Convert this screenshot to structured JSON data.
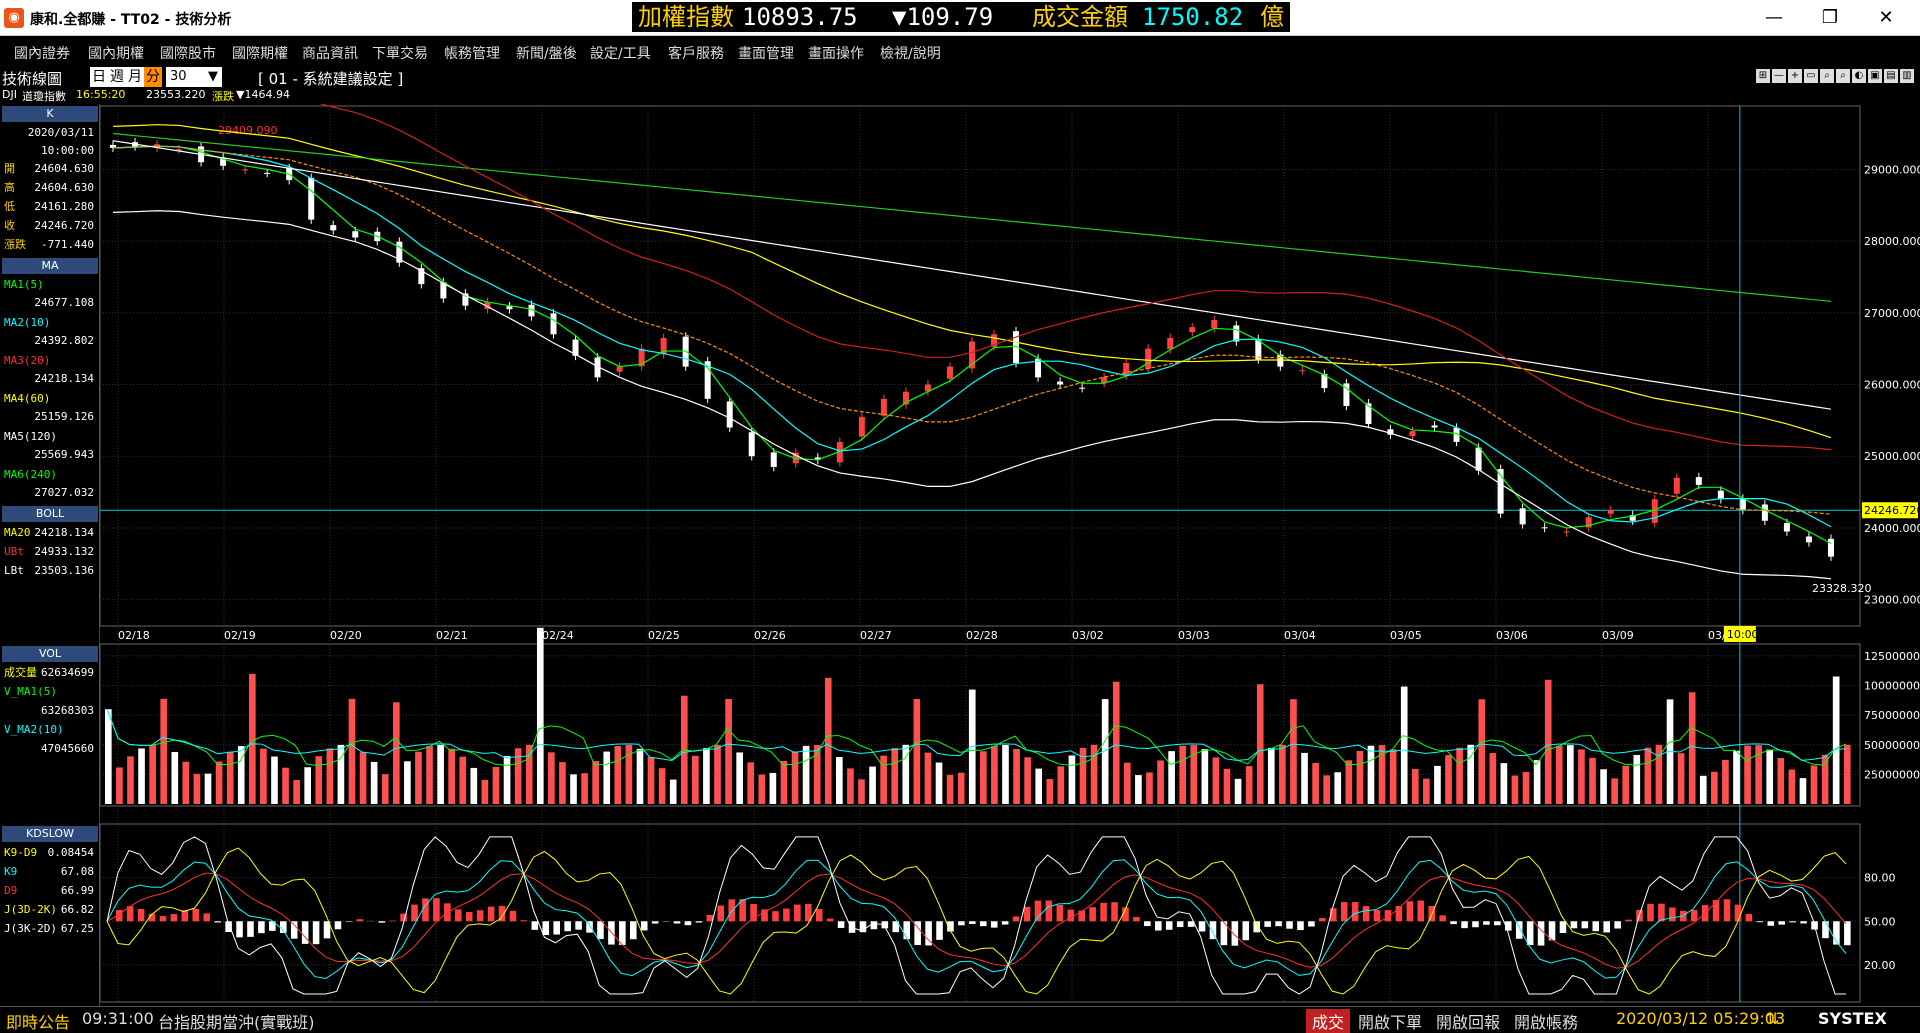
{
  "window": {
    "title": "康和.全都賺 - TT02 - 技術分析",
    "ticker": {
      "label": "加權指數",
      "index": "10893.75",
      "change": "▼109.79",
      "amount_label": "成交金額",
      "amount": "1750.82",
      "unit": "億"
    }
  },
  "menu": [
    "國內證券",
    "國內期權",
    "國際股市",
    "國際期權",
    "商品資訊",
    "下單交易",
    "帳務管理",
    "新聞/盤後",
    "設定/工具",
    "客戶服務",
    "畫面管理",
    "畫面操作",
    "檢視/說明"
  ],
  "toolbar": {
    "title": "技術線圖",
    "periods": [
      "日",
      "週",
      "月",
      "分"
    ],
    "active_period": "分",
    "interval": "30",
    "setting": "[ 01 - 系統建議設定 ]"
  },
  "infoline": {
    "symbol": "DJI",
    "name": "道瓊指數",
    "time": "16:55:20",
    "price": "23553.220",
    "change_label": "漲跌",
    "change": "▼1464.94"
  },
  "panel_k": {
    "head": "K",
    "date": "2020/03/11",
    "time": "10:00:00",
    "rows": [
      {
        "k": "開",
        "v": "24604.630"
      },
      {
        "k": "高",
        "v": "24604.630"
      },
      {
        "k": "低",
        "v": "24161.280"
      },
      {
        "k": "收",
        "v": "24246.720"
      },
      {
        "k": "漲跌",
        "v": "-771.440"
      }
    ]
  },
  "panel_ma": {
    "head": "MA",
    "rows": [
      {
        "k": "MA1(5)",
        "v": "24677.108",
        "color": "#00ff00"
      },
      {
        "k": "MA2(10)",
        "v": "24392.802",
        "color": "#00ffff"
      },
      {
        "k": "MA3(20)",
        "v": "24218.134",
        "color": "#ff3030"
      },
      {
        "k": "MA4(60)",
        "v": "25159.126",
        "color": "#ffff00"
      },
      {
        "k": "MA5(120)",
        "v": "25569.943",
        "color": "#ffffff"
      },
      {
        "k": "MA6(240)",
        "v": "27027.032",
        "color": "#00ff00"
      }
    ]
  },
  "panel_boll": {
    "head": "BOLL",
    "rows": [
      {
        "k": "MA20",
        "v": "24218.134",
        "color": "#ffff00"
      },
      {
        "k": "UBt",
        "v": "24933.132",
        "color": "#ff3030"
      },
      {
        "k": "LBt",
        "v": "23503.136",
        "color": "#ffffff"
      }
    ]
  },
  "panel_vol": {
    "head": "VOL",
    "rows": [
      {
        "k": "成交量",
        "v": "62634699",
        "color": "#ffff00"
      },
      {
        "k": "V_MA1(5)",
        "v": "",
        "color": "#00ff00"
      },
      {
        "k": "",
        "v": "63268303",
        "color": "#ffff00"
      },
      {
        "k": "V_MA2(10)",
        "v": "",
        "color": "#00ffff"
      },
      {
        "k": "",
        "v": "47045660",
        "color": "#00ffff"
      }
    ]
  },
  "panel_kd": {
    "head": "KDSLOW",
    "rows": [
      {
        "k": "K9-D9",
        "v": "0.08454",
        "color": "#ffff00"
      },
      {
        "k": "K9",
        "v": "67.08",
        "color": "#00ffff"
      },
      {
        "k": "D9",
        "v": "66.99",
        "color": "#ff3030"
      },
      {
        "k": "J(3D-2K)",
        "v": "66.82",
        "color": "#ffff00"
      },
      {
        "k": "J(3K-2D)",
        "v": "67.25",
        "color": "#ffffff"
      }
    ]
  },
  "chart": {
    "price_ticks": [
      "29000.000",
      "28000.000",
      "27000.000",
      "26000.000",
      "25000.000",
      "24000.000",
      "23000.000"
    ],
    "vol_ticks": [
      "125000000",
      "100000000",
      "75000000",
      "50000000",
      "25000000"
    ],
    "kd_ticks": [
      "80.00",
      "50.00",
      "20.00"
    ],
    "dates": [
      "02/18",
      "02/19",
      "02/20",
      "02/21",
      "02/24",
      "02/25",
      "02/26",
      "02/27",
      "02/28",
      "03/02",
      "03/03",
      "03/04",
      "03/05",
      "03/06",
      "03/09",
      "03/10"
    ],
    "cursor_time": "10:00",
    "current_price": "24246.720",
    "high_label": "29409.090",
    "low_label": "23328.320"
  },
  "status": {
    "news_label": "即時公告",
    "news_time": "09:31:00",
    "news_text": "台指股期當沖(實戰班)",
    "trade": "成交",
    "buttons": [
      "開啟下單",
      "開啟回報",
      "開啟帳務"
    ],
    "datetime": "2020/03/12 05:29:03",
    "brand": "SYSTEX"
  },
  "chart_data": {
    "type": "candlestick",
    "ylim": [
      22800,
      29800
    ],
    "close": [
      29300,
      29320,
      29350,
      29280,
      29100,
      29050,
      29000,
      28950,
      28850,
      28300,
      28150,
      28050,
      28000,
      27700,
      27400,
      27200,
      27100,
      27150,
      27050,
      26950,
      26700,
      26400,
      26100,
      26250,
      26500,
      26650,
      26250,
      25800,
      25400,
      25000,
      24850,
      25050,
      24950,
      25200,
      25550,
      25800,
      25900,
      26000,
      26250,
      26600,
      26700,
      26300,
      26100,
      26000,
      25950,
      26100,
      26300,
      26500,
      26650,
      26800,
      26900,
      26600,
      26350,
      26250,
      26200,
      25950,
      25700,
      25450,
      25300,
      25350,
      25400,
      25200,
      24800,
      24200,
      24050,
      24000,
      23950,
      24150,
      24250,
      24100,
      24400,
      24700,
      24600,
      24400,
      24250,
      24100,
      23950,
      23800,
      23600
    ]
  }
}
